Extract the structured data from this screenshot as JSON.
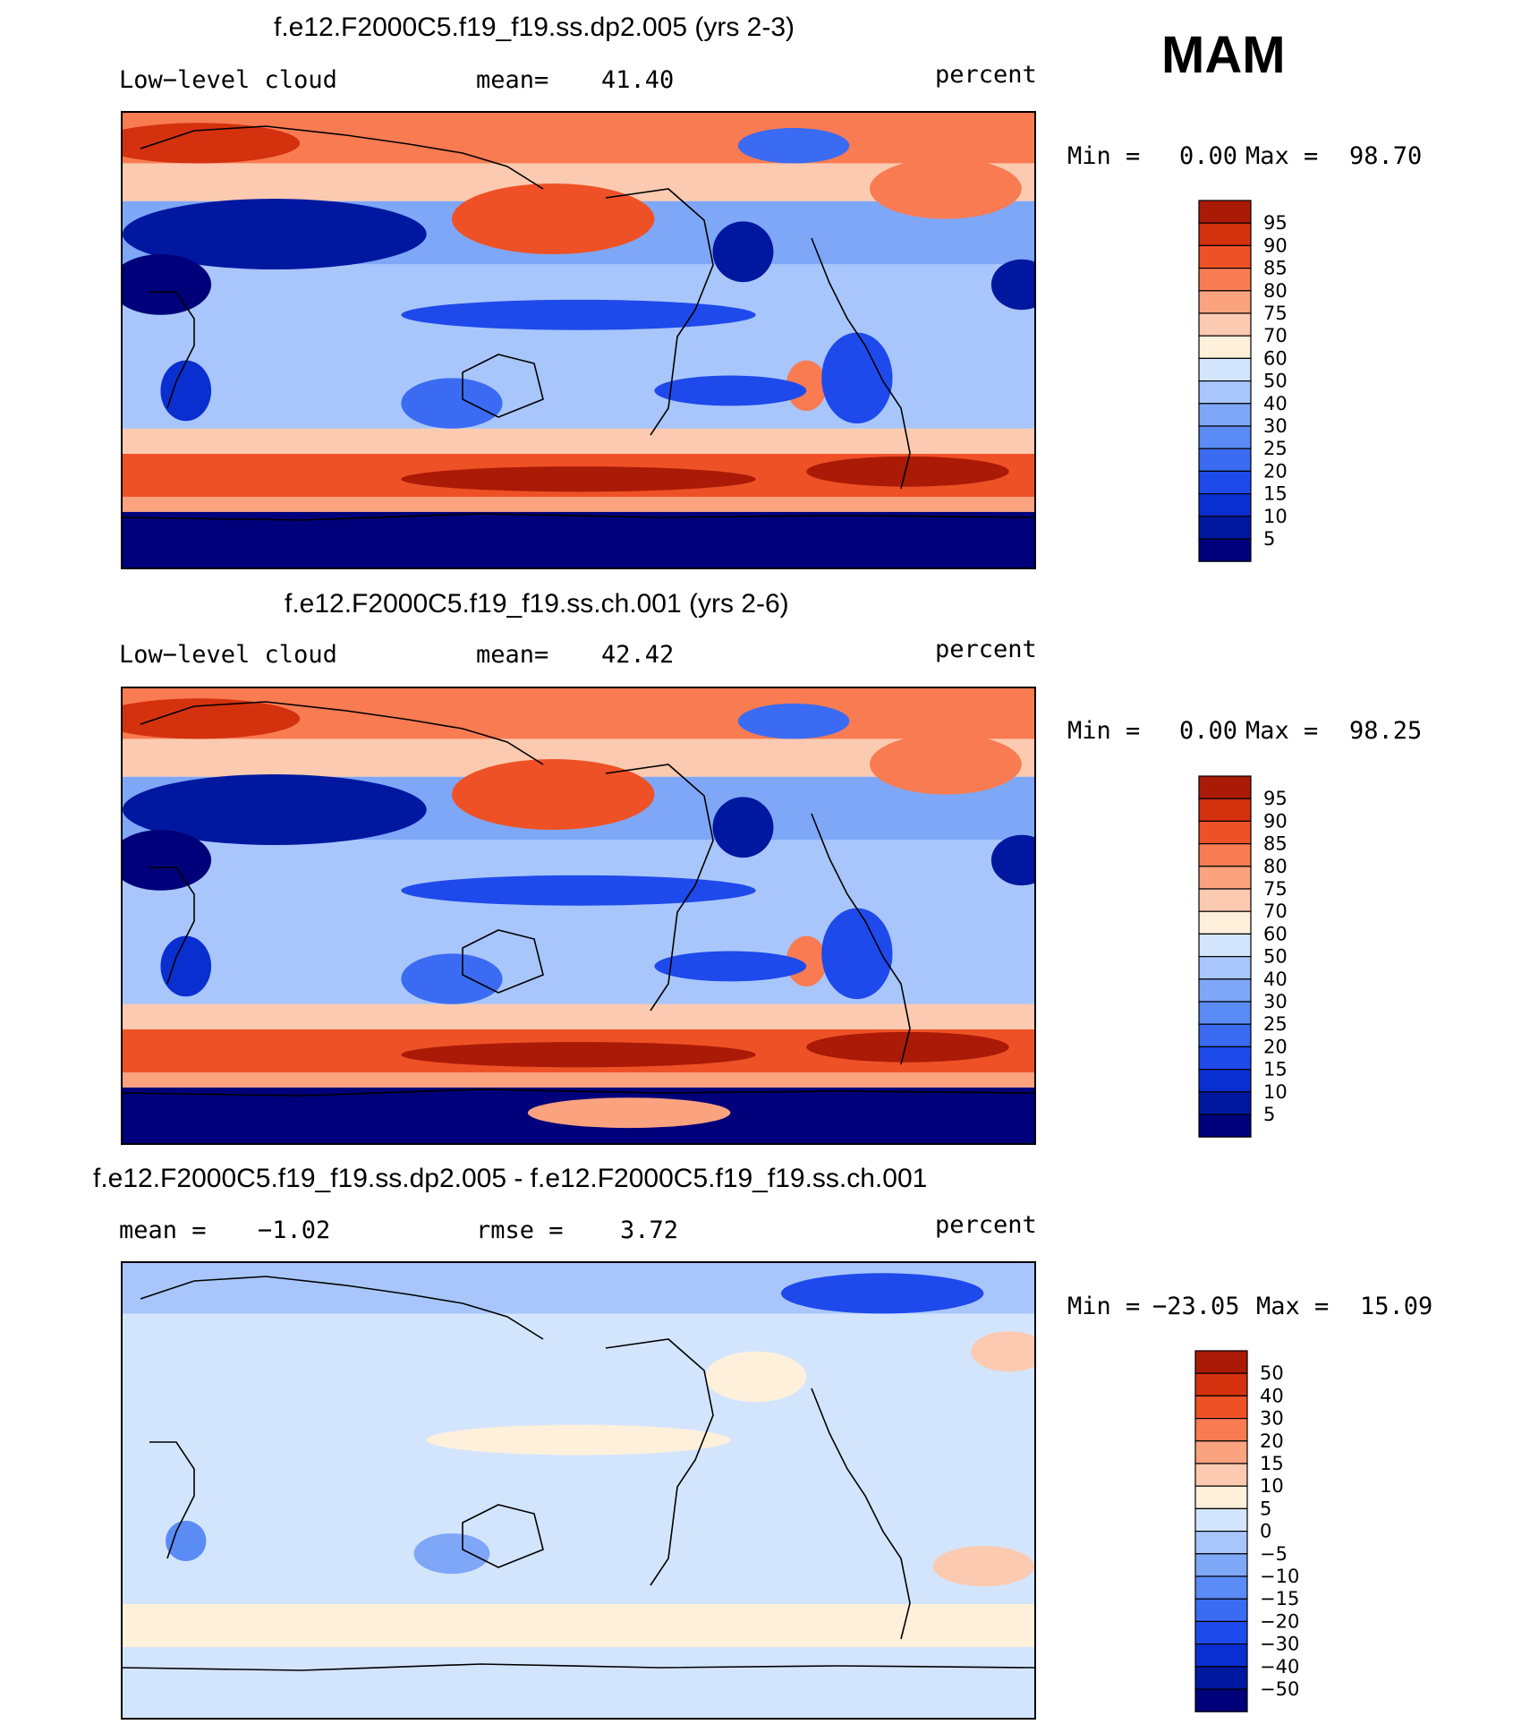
{
  "season": "MAM",
  "colors": {
    "abs_palette": [
      "#00007a",
      "#0018a0",
      "#0a2fd0",
      "#1e4aeb",
      "#3a6bf2",
      "#5b8bf5",
      "#7ea7f8",
      "#a8c6fb",
      "#d3e5fd",
      "#fff0dc",
      "#fccab0",
      "#fba27f",
      "#f97b52",
      "#ef5126",
      "#d4310f",
      "#aa1a06",
      "#7d0000"
    ],
    "diff_palette": [
      "#00007a",
      "#0018a0",
      "#0a2fd0",
      "#1e4aeb",
      "#3a6bf2",
      "#5b8bf5",
      "#7ea7f8",
      "#a8c6fb",
      "#d3e5fd",
      "#fff0dc",
      "#fccab0",
      "#fba27f",
      "#f97b52",
      "#ef5126",
      "#d4310f",
      "#aa1a06",
      "#7d0000"
    ]
  },
  "chart_data": [
    {
      "type": "heatmap",
      "title": "f.e12.F2000C5.f19_f19.ss.dp2.005 (yrs 2-3)",
      "variable": "Low−level  cloud",
      "stat_label": "mean=",
      "stat_value": "41.40",
      "units": "percent",
      "min_label": "Min  =",
      "min_value": "0.00",
      "max_label": "Max  =",
      "max_value": "98.70",
      "colorbar_levels": [
        "95",
        "90",
        "85",
        "80",
        "75",
        "70",
        "60",
        "50",
        "40",
        "30",
        "25",
        "20",
        "15",
        "10",
        "5"
      ],
      "field_variant": 0
    },
    {
      "type": "heatmap",
      "title": "f.e12.F2000C5.f19_f19.ss.ch.001 (yrs 2-6)",
      "variable": "Low−level  cloud",
      "stat_label": "mean=",
      "stat_value": "42.42",
      "units": "percent",
      "min_label": "Min  =",
      "min_value": "0.00",
      "max_label": "Max  =",
      "max_value": "98.25",
      "colorbar_levels": [
        "95",
        "90",
        "85",
        "80",
        "75",
        "70",
        "60",
        "50",
        "40",
        "30",
        "25",
        "20",
        "15",
        "10",
        "5"
      ],
      "field_variant": 1
    },
    {
      "type": "heatmap",
      "title": "f.e12.F2000C5.f19_f19.ss.dp2.005 - f.e12.F2000C5.f19_f19.ss.ch.001",
      "stat_label": "mean =",
      "stat_value": "−1.02",
      "stat2_label": "rmse =",
      "stat2_value": "3.72",
      "units": "percent",
      "min_label": "Min  =",
      "min_value": "−23.05",
      "max_label": "Max  =",
      "max_value": "15.09",
      "colorbar_levels": [
        "50",
        "40",
        "30",
        "20",
        "15",
        "10",
        "5",
        "0",
        "−5",
        "−10",
        "−15",
        "−20",
        "−30",
        "−40",
        "−50"
      ],
      "field_variant": 2
    }
  ]
}
